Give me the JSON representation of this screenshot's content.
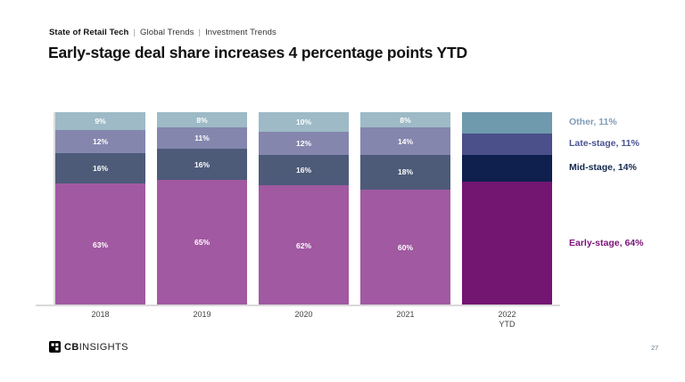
{
  "header": {
    "kicker": {
      "primary": "State of Retail Tech",
      "separator": "|",
      "items": [
        "Global Trends",
        "Investment Trends"
      ]
    },
    "title": "Early-stage deal share increases 4 percentage points YTD"
  },
  "chart_data": {
    "type": "bar",
    "stacked": true,
    "unit": "%",
    "ylim": [
      0,
      100
    ],
    "grid": false,
    "legend_position": "right",
    "categories": [
      "2018",
      "2019",
      "2020",
      "2021",
      "2022\nYTD"
    ],
    "highlight_category_index": 4,
    "series": [
      {
        "name": "Early-stage",
        "values": [
          63,
          65,
          62,
          60,
          64
        ],
        "color": "#a159a1",
        "highlight_color": "#731672"
      },
      {
        "name": "Mid-stage",
        "values": [
          16,
          16,
          16,
          18,
          14
        ],
        "color": "#4d5b79",
        "highlight_color": "#0f1f4e"
      },
      {
        "name": "Late-stage",
        "values": [
          12,
          11,
          12,
          14,
          11
        ],
        "color": "#8486ae",
        "highlight_color": "#4b4f8a"
      },
      {
        "name": "Other",
        "values": [
          9,
          8,
          10,
          8,
          11
        ],
        "color": "#9dbac6",
        "highlight_color": "#6f9aad"
      }
    ],
    "legend": [
      {
        "label": "Other, 11%",
        "color": "#7f9db6"
      },
      {
        "label": "Late-stage, 11%",
        "color": "#4a5492"
      },
      {
        "label": "Mid-stage, 14%",
        "color": "#152950"
      },
      {
        "label": "Early-stage, 64%",
        "color": "#7b1278"
      }
    ]
  },
  "footer": {
    "logo": {
      "bold": "CB",
      "light": "INSIGHTS"
    },
    "page_number": "27"
  }
}
